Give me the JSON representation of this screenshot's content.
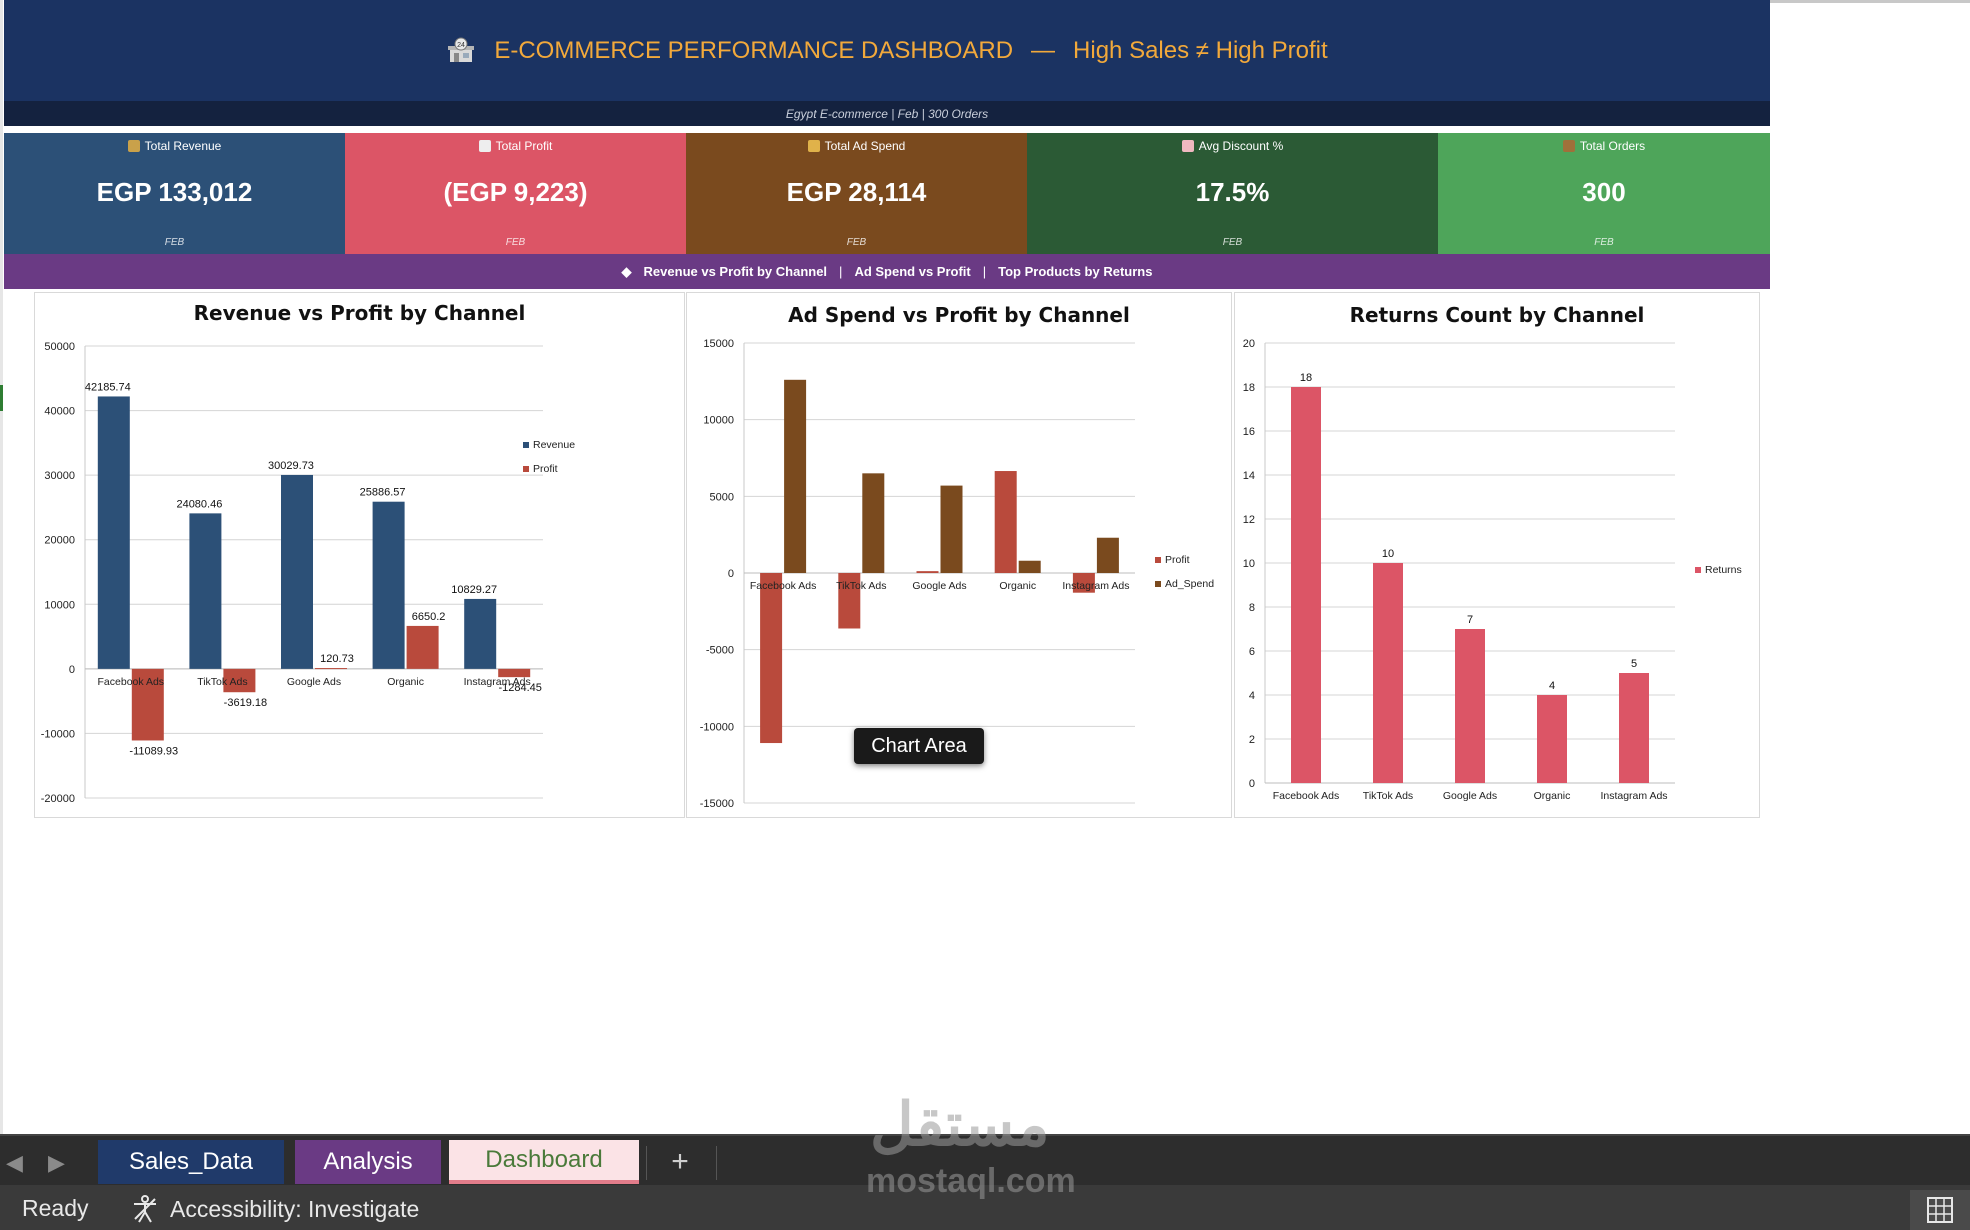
{
  "header": {
    "title": "E-COMMERCE PERFORMANCE DASHBOARD",
    "dash": "—",
    "tagline": "High Sales ≠ High Profit",
    "subtitle": "Egypt E-commerce  |  Feb |  300 Orders",
    "title_color": "#f2a93b",
    "bg_color": "#1b3362"
  },
  "kpis": [
    {
      "label": "Total Revenue",
      "value": "EGP 133,012",
      "sub": "FEB",
      "color": "#2c5077",
      "icon": "money-bag-icon"
    },
    {
      "label": "Total Profit",
      "value": "(EGP 9,223)",
      "sub": "FEB",
      "color": "#dc5566",
      "icon": "chart-down-icon"
    },
    {
      "label": "Total Ad Spend",
      "value": "EGP 28,114",
      "sub": "FEB",
      "color": "#7a4a1e",
      "icon": "megaphone-icon"
    },
    {
      "label": "Avg Discount %",
      "value": "17.5%",
      "sub": "FEB",
      "color": "#2b5a35",
      "icon": "tag-icon"
    },
    {
      "label": "Total Orders",
      "value": "300",
      "sub": "FEB",
      "color": "#4ea55a",
      "icon": "box-icon"
    }
  ],
  "nav": {
    "bullet": "◆",
    "items": [
      "Revenue vs Profit by Channel",
      "Ad Spend vs Profit",
      "Top Products by Returns"
    ]
  },
  "chart_data": [
    {
      "type": "bar",
      "title": "Revenue vs Profit by Channel",
      "categories": [
        "Facebook Ads",
        "TikTok Ads",
        "Google Ads",
        "Organic",
        "Instagram Ads"
      ],
      "series": [
        {
          "name": "Revenue",
          "values": [
            42185.74,
            24080.46,
            30029.73,
            25886.57,
            10829.27
          ],
          "color": "#2c5077"
        },
        {
          "name": "Profit",
          "values": [
            -11089.93,
            -3619.18,
            120.73,
            6650.2,
            -1284.45
          ],
          "color": "#b94a3c"
        }
      ],
      "ylim": [
        -20000,
        50000
      ],
      "yticks": [
        -20000,
        -10000,
        0,
        10000,
        20000,
        30000,
        40000,
        50000
      ],
      "grid": true,
      "legend": "right",
      "data_labels": true
    },
    {
      "type": "bar",
      "title": "Ad Spend vs Profit by Channel",
      "categories": [
        "Facebook Ads",
        "TikTok Ads",
        "Google Ads",
        "Organic",
        "Instagram Ads"
      ],
      "series": [
        {
          "name": "Profit",
          "values": [
            -11089.93,
            -3619.18,
            120.73,
            6650.2,
            -1284.45
          ],
          "color": "#b94a3c"
        },
        {
          "name": "Ad_Spend",
          "values": [
            12600,
            6500,
            5700,
            800,
            2300
          ],
          "color": "#7a4a1e"
        }
      ],
      "ylim": [
        -15000,
        15000
      ],
      "yticks": [
        -15000,
        -10000,
        -5000,
        0,
        5000,
        10000,
        15000
      ],
      "grid": true,
      "legend": "right",
      "data_labels": false
    },
    {
      "type": "bar",
      "title": "Returns Count by Channel",
      "categories": [
        "Facebook Ads",
        "TikTok Ads",
        "Google Ads",
        "Organic",
        "Instagram Ads"
      ],
      "series": [
        {
          "name": "Returns",
          "values": [
            18,
            10,
            7,
            4,
            5
          ],
          "color": "#dc5566"
        }
      ],
      "ylim": [
        0,
        20
      ],
      "yticks": [
        0,
        2,
        4,
        6,
        8,
        10,
        12,
        14,
        16,
        18,
        20
      ],
      "grid": true,
      "legend": "right",
      "data_labels": true
    }
  ],
  "tooltip": "Chart Area",
  "tabs": [
    {
      "label": "Sales_Data"
    },
    {
      "label": "Analysis"
    },
    {
      "label": "Dashboard"
    }
  ],
  "add_tab": "+",
  "status": {
    "ready": "Ready",
    "accessibility": "Accessibility: Investigate"
  },
  "watermark": {
    "arabic": "مستقل",
    "latin": "mostaql.com"
  }
}
